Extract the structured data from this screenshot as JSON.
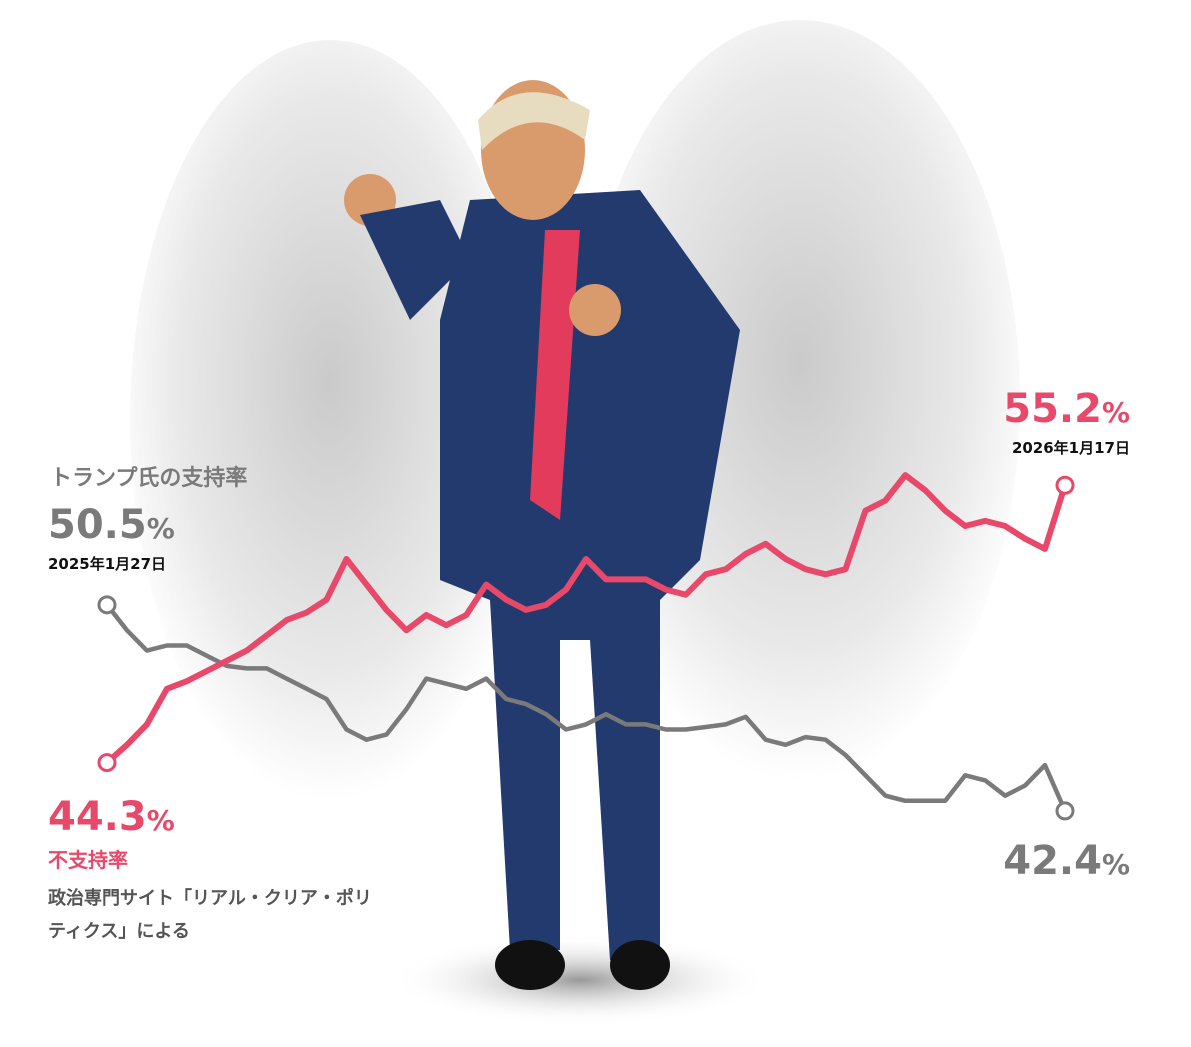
{
  "chart_data": {
    "type": "line",
    "unit": "%",
    "start_date": "2025年1月27日",
    "end_date": "2026年1月17日",
    "source": "政治専門サイト「リアル・クリア・ポリティクス」による",
    "ylim": [
      40,
      58
    ],
    "series": [
      {
        "name": "トランプ氏の支持率",
        "color": "#7a7a7a",
        "values": [
          50.5,
          49.5,
          48.7,
          48.9,
          48.9,
          48.5,
          48.1,
          48.0,
          48.0,
          47.6,
          47.2,
          46.8,
          45.6,
          45.2,
          45.4,
          46.4,
          47.6,
          47.4,
          47.2,
          47.6,
          46.8,
          46.6,
          46.2,
          45.6,
          45.8,
          46.2,
          45.8,
          45.8,
          45.6,
          45.6,
          45.7,
          45.8,
          46.1,
          45.2,
          45.0,
          45.3,
          45.2,
          44.6,
          43.8,
          43.0,
          42.8,
          42.8,
          42.8,
          43.8,
          43.6,
          43.0,
          43.4,
          44.2,
          42.4
        ]
      },
      {
        "name": "不支持率",
        "color": "#e8496a",
        "values": [
          44.3,
          45.0,
          45.8,
          47.2,
          47.5,
          47.9,
          48.3,
          48.7,
          49.3,
          49.9,
          50.2,
          50.7,
          52.3,
          51.3,
          50.3,
          49.5,
          50.1,
          49.7,
          50.1,
          51.3,
          50.7,
          50.3,
          50.5,
          51.1,
          52.3,
          51.5,
          51.5,
          51.5,
          51.1,
          50.9,
          51.7,
          51.9,
          52.5,
          52.9,
          52.3,
          51.9,
          51.7,
          51.9,
          54.2,
          54.6,
          55.6,
          55.0,
          54.2,
          53.6,
          53.8,
          53.6,
          53.1,
          52.7,
          55.2
        ]
      }
    ]
  }
}
